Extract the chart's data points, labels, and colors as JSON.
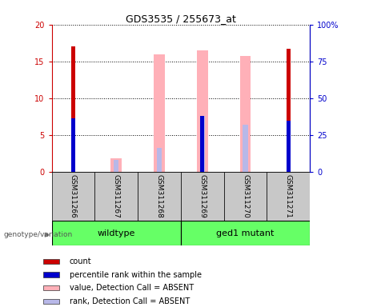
{
  "title": "GDS3535 / 255673_at",
  "samples": [
    "GSM311266",
    "GSM311267",
    "GSM311268",
    "GSM311269",
    "GSM311270",
    "GSM311271"
  ],
  "left_ylim": [
    0,
    20
  ],
  "right_ylim": [
    0,
    100
  ],
  "left_yticks": [
    0,
    5,
    10,
    15,
    20
  ],
  "right_yticks": [
    0,
    25,
    50,
    75,
    100
  ],
  "left_yticklabels": [
    "0",
    "5",
    "10",
    "15",
    "20"
  ],
  "right_yticklabels": [
    "0",
    "25",
    "50",
    "75",
    "100%"
  ],
  "red_bars": [
    17.0,
    0.0,
    0.0,
    0.0,
    0.0,
    16.7
  ],
  "blue_markers": [
    7.3,
    0.0,
    0.0,
    7.6,
    0.0,
    7.0
  ],
  "pink_bars": [
    0.0,
    1.9,
    16.0,
    16.5,
    15.7,
    0.0
  ],
  "lavender_markers": [
    0.0,
    1.6,
    3.3,
    7.6,
    6.4,
    0.0
  ],
  "red_color": "#CC0000",
  "blue_color": "#0000CC",
  "pink_color": "#FFB0B8",
  "lavender_color": "#B8B8E8",
  "legend_items": [
    {
      "color": "#CC0000",
      "label": "count"
    },
    {
      "color": "#0000CC",
      "label": "percentile rank within the sample"
    },
    {
      "color": "#FFB0B8",
      "label": "value, Detection Call = ABSENT"
    },
    {
      "color": "#B8B8E8",
      "label": "rank, Detection Call = ABSENT"
    }
  ],
  "genotype_label": "genotype/variation",
  "wildtype_label": "wildtype",
  "ged1_label": "ged1 mutant",
  "green_color": "#66FF66",
  "gray_color": "#C8C8C8"
}
